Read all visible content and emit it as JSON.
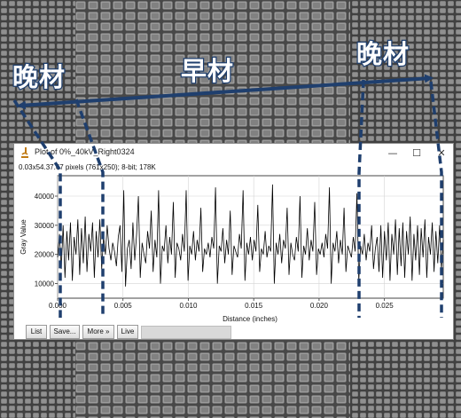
{
  "annotations": {
    "latewood_left": "晚材",
    "earlywood": "早材",
    "latewood_right": "晚材"
  },
  "window": {
    "title": "Plot of 0%_40kV_Right0324",
    "info": "0.03x54.37.67 pixels (761x250); 8-bit; 178K",
    "controls": {
      "minimize": "—",
      "maximize": "☐",
      "close": "✕"
    }
  },
  "buttons": {
    "list": "List",
    "save": "Save...",
    "more": "More »",
    "live": "Live"
  },
  "colors": {
    "annotation_fill": "#ffffff",
    "annotation_outline": "#1f3f6e",
    "arrow": "#1f3f6e",
    "dash_line": "#1f3f6e",
    "plot_line": "#000000"
  },
  "chart_data": {
    "type": "line",
    "xlabel": "Distance (inches)",
    "ylabel": "Gray Value",
    "xlim": [
      0,
      0.0295
    ],
    "ylim": [
      5000,
      47000
    ],
    "x_ticks": [
      "0.000",
      "0.005",
      "0.010",
      "0.015",
      "0.020",
      "0.025"
    ],
    "x_tick_values": [
      0,
      0.005,
      0.01,
      0.015,
      0.02,
      0.025
    ],
    "y_ticks": [
      "10000",
      "20000",
      "30000",
      "40000"
    ],
    "y_tick_values": [
      10000,
      20000,
      30000,
      40000
    ],
    "grid": true,
    "series": [
      {
        "y": [
          19000,
          27000,
          15000,
          30000,
          12000,
          28000,
          18000,
          31000,
          11000,
          26000,
          20000,
          32000,
          13000,
          29000,
          17000,
          33000,
          14000,
          27000,
          21000,
          31000,
          12000,
          28000,
          19000,
          32000,
          15000,
          26000,
          20000,
          30000,
          22000,
          18000,
          24000,
          21000,
          16000,
          26000,
          30000,
          14000,
          42000,
          9000,
          22000,
          25000,
          15000,
          31000,
          18000,
          27000,
          40000,
          12000,
          24000,
          20000,
          17000,
          28000,
          22000,
          35000,
          14000,
          25000,
          19000,
          42000,
          10000,
          23000,
          21000,
          30000,
          17000,
          26000,
          20000,
          38000,
          12000,
          24000,
          22000,
          18000,
          27000,
          21000,
          42000,
          11000,
          23000,
          20000,
          28000,
          18000,
          25000,
          21000,
          36000,
          14000,
          22000,
          20000,
          24000,
          19000,
          26000,
          22000,
          43000,
          10000,
          23000,
          21000,
          29000,
          17000,
          25000,
          20000,
          35000,
          13000,
          23000,
          21000,
          19000,
          27000,
          22000,
          42000,
          11000,
          24000,
          20000,
          26000,
          18000,
          25000,
          21000,
          37000,
          14000,
          22000,
          20000,
          28000,
          19000,
          23000,
          21000,
          44000,
          10000,
          24000,
          20000,
          27000,
          17000,
          25000,
          22000,
          36000,
          13000,
          24000,
          20000,
          18000,
          26000,
          21000,
          40000,
          12000,
          23000,
          20000,
          29000,
          18000,
          25000,
          21000,
          38000,
          13000,
          22000,
          20000,
          24000,
          19000,
          27000,
          22000,
          43000,
          10000,
          24000,
          21000,
          28000,
          17000,
          25000,
          20000,
          36000,
          14000,
          23000,
          21000,
          19000,
          26000,
          21000,
          41000,
          11000,
          23000,
          20000,
          27000,
          18000,
          24000,
          21000,
          30000,
          15000,
          22000,
          26000,
          14000,
          30000,
          12000,
          28000,
          18000,
          31000,
          11000,
          27000,
          20000,
          32000,
          13000,
          29000,
          16000,
          31000,
          12000,
          28000,
          20000,
          33000,
          11000,
          27000,
          18000,
          30000,
          13000,
          29000,
          19000,
          32000,
          12000,
          26000,
          20000,
          31000,
          14000,
          28000,
          17000,
          30000,
          15000,
          25000
        ]
      }
    ]
  }
}
